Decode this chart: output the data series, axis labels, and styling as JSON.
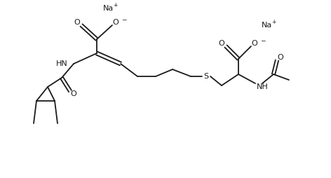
{
  "background": "#ffffff",
  "line_color": "#1a1a1a",
  "line_width": 1.3,
  "font_size": 8.0,
  "fig_width": 4.72,
  "fig_height": 2.54,
  "dpi": 100,
  "na1": [
    148,
    242
  ],
  "na2": [
    375,
    218
  ]
}
